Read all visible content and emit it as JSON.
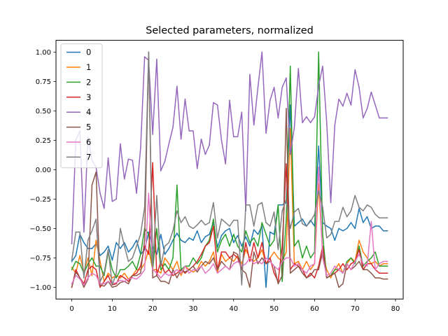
{
  "chart_data": {
    "type": "line",
    "title": "Selected parameters, normalized",
    "xlabel": "",
    "ylabel": "",
    "xlim": [
      -3.9,
      81.9
    ],
    "ylim": [
      -1.1,
      1.1
    ],
    "xticks": [
      0,
      10,
      20,
      30,
      40,
      50,
      60,
      70,
      80
    ],
    "yticks": [
      -1.0,
      -0.75,
      -0.5,
      -0.25,
      0.0,
      0.25,
      0.5,
      0.75,
      1.0
    ],
    "xtick_labels": [
      "0",
      "10",
      "20",
      "30",
      "40",
      "50",
      "60",
      "70",
      "80"
    ],
    "ytick_labels": [
      "−1.00",
      "−0.75",
      "−0.50",
      "−0.25",
      "0.00",
      "0.25",
      "0.50",
      "0.75",
      "1.00"
    ],
    "grid": false,
    "legend_position": "upper-left",
    "series": [
      {
        "name": "0",
        "color": "#1f77b4",
        "values": [
          -0.78,
          -0.73,
          -0.55,
          -0.62,
          -0.67,
          -0.67,
          -0.63,
          -0.73,
          -0.7,
          -0.65,
          -0.77,
          -0.62,
          -0.67,
          -0.62,
          -0.7,
          -0.66,
          -0.6,
          -0.72,
          -0.68,
          -0.53,
          -0.66,
          -0.72,
          -0.55,
          -0.72,
          -0.67,
          -0.6,
          -0.54,
          -0.6,
          -0.62,
          -0.58,
          -0.6,
          -0.52,
          -0.62,
          -0.57,
          -0.55,
          -0.45,
          -0.66,
          -0.56,
          -0.52,
          -0.5,
          -0.62,
          -0.56,
          -0.65,
          -0.57,
          -0.65,
          -0.51,
          -0.55,
          -0.48,
          -1.0,
          -0.53,
          -0.55,
          -0.3,
          -0.3,
          -0.28,
          0.55,
          -0.48,
          -0.45,
          -0.42,
          -0.48,
          -0.43,
          -0.48,
          0.2,
          -0.45,
          -0.48,
          -0.5,
          -0.6,
          -0.5,
          -0.52,
          -0.5,
          -0.45,
          -0.5,
          -0.33,
          -0.45,
          -0.4,
          -0.5,
          -0.48,
          -0.48,
          -0.52,
          -0.52
        ]
      },
      {
        "name": "1",
        "color": "#ff7f0e",
        "values": [
          -0.83,
          -0.88,
          -0.73,
          -0.87,
          -0.75,
          -0.9,
          -0.6,
          -0.78,
          -0.95,
          -0.88,
          -0.92,
          -0.9,
          -0.92,
          -0.88,
          -0.93,
          -0.9,
          -0.85,
          -0.85,
          -0.8,
          -0.68,
          -0.85,
          -0.85,
          -0.88,
          -0.75,
          -0.8,
          -0.85,
          -0.78,
          -0.9,
          -0.82,
          -0.85,
          -0.87,
          -0.85,
          -0.78,
          -0.82,
          -0.78,
          -0.7,
          -0.88,
          -0.72,
          -0.78,
          -0.75,
          -0.78,
          -0.73,
          -0.8,
          -0.68,
          -0.75,
          -0.78,
          -0.75,
          -0.68,
          -0.8,
          -0.75,
          -0.7,
          -0.75,
          -0.78,
          -0.7,
          0.35,
          -0.8,
          -0.78,
          -0.85,
          -0.78,
          -0.85,
          -0.8,
          -0.12,
          -0.72,
          -0.85,
          -0.92,
          -0.85,
          -0.8,
          -0.88,
          -0.8,
          -0.75,
          -0.78,
          -0.6,
          -0.7,
          -0.75,
          -0.8,
          -0.78,
          -0.82,
          -0.8,
          -0.8
        ]
      },
      {
        "name": "2",
        "color": "#2ca02c",
        "values": [
          -0.85,
          -0.78,
          -0.8,
          -0.88,
          -0.8,
          -0.75,
          -0.82,
          -0.82,
          -0.9,
          -0.7,
          -0.85,
          -0.92,
          -0.85,
          -0.85,
          -0.82,
          -0.78,
          -0.85,
          -0.72,
          -0.5,
          -0.55,
          -0.85,
          -0.5,
          -0.85,
          -0.8,
          -0.85,
          -0.75,
          -0.13,
          -0.85,
          -0.82,
          -0.82,
          -0.75,
          -0.8,
          -0.75,
          -0.65,
          -0.6,
          -0.42,
          -0.7,
          -0.6,
          -0.55,
          -0.65,
          -0.55,
          -0.65,
          -0.7,
          -0.52,
          -0.62,
          -0.58,
          -0.65,
          -0.45,
          -0.55,
          -0.65,
          -0.6,
          -0.3,
          -0.95,
          -0.42,
          0.88,
          -0.65,
          -0.6,
          -0.75,
          -0.65,
          -0.75,
          -0.7,
          1.0,
          -0.55,
          -0.92,
          -0.9,
          -0.85,
          -0.85,
          -0.88,
          -0.78,
          -0.75,
          -0.8,
          -0.65,
          -0.82,
          -0.78,
          -0.75,
          -0.7,
          -0.82,
          -0.82,
          -0.82
        ]
      },
      {
        "name": "3",
        "color": "#d62728",
        "values": [
          -1.0,
          -0.85,
          -0.92,
          -0.97,
          -0.85,
          -0.82,
          -0.85,
          -1.0,
          -0.95,
          -0.9,
          -0.98,
          -0.97,
          -0.9,
          -0.92,
          -0.95,
          -0.9,
          -0.88,
          -0.82,
          -0.65,
          -0.72,
          0.06,
          -0.9,
          -0.78,
          -0.88,
          -0.85,
          -0.9,
          -0.88,
          -0.85,
          -0.88,
          -0.85,
          -0.82,
          -0.78,
          -0.72,
          -0.65,
          -0.62,
          -0.48,
          -0.85,
          -0.7,
          -0.7,
          -0.75,
          -0.72,
          -0.75,
          -0.85,
          -0.62,
          -0.78,
          -0.62,
          -0.75,
          -0.62,
          -0.8,
          -0.75,
          -0.88,
          -0.95,
          -0.65,
          0.05,
          -0.85,
          -0.8,
          -0.82,
          -0.85,
          -0.92,
          -0.88,
          -0.92,
          -0.82,
          -0.65,
          -0.92,
          -0.9,
          -0.88,
          -0.85,
          -0.8,
          -0.85,
          -0.8,
          -0.78,
          -0.68,
          -0.85,
          -0.8,
          -0.8,
          -0.85,
          -0.88,
          -0.88,
          -0.88
        ]
      },
      {
        "name": "4",
        "color": "#9467bd",
        "values": [
          -0.63,
          0.25,
          0.33,
          -0.53,
          0.28,
          0.08,
          0.02,
          -0.2,
          -0.33,
          0.1,
          -0.27,
          -0.25,
          0.22,
          -0.08,
          0.09,
          0.08,
          -0.2,
          0.18,
          0.96,
          0.93,
          0.3,
          0.94,
          -0.01,
          0.07,
          0.22,
          0.36,
          0.71,
          0.26,
          0.6,
          0.33,
          0.33,
          0.01,
          0.26,
          0.13,
          0.21,
          0.57,
          0.55,
          0.25,
          0.05,
          0.59,
          0.28,
          0.28,
          0.49,
          -0.35,
          0.81,
          0.38,
          0.7,
          1.0,
          0.31,
          0.59,
          0.7,
          0.44,
          0.7,
          0.78,
          0.13,
          0.36,
          0.86,
          0.4,
          0.45,
          0.4,
          0.45,
          0.71,
          0.88,
          0.4,
          -0.28,
          0.38,
          0.6,
          0.54,
          0.65,
          0.55,
          0.85,
          0.7,
          0.44,
          0.52,
          0.66,
          0.55,
          0.44,
          0.44,
          0.44
        ]
      },
      {
        "name": "5",
        "color": "#8c564b",
        "values": [
          -1.0,
          -0.87,
          -0.92,
          -1.0,
          -0.93,
          -0.13,
          -0.02,
          -0.98,
          -0.99,
          -0.95,
          -1.0,
          -0.99,
          -0.96,
          -0.95,
          -0.97,
          -0.9,
          -0.9,
          -0.88,
          -0.6,
          1.0,
          -0.92,
          -0.9,
          -0.95,
          -0.95,
          -0.97,
          -0.85,
          -0.92,
          -0.85,
          -0.87,
          -0.85,
          -0.82,
          -0.87,
          -0.82,
          -0.78,
          -0.8,
          -0.75,
          -0.85,
          -0.78,
          -0.82,
          -0.85,
          -0.7,
          -0.72,
          -0.85,
          -0.88,
          -1.0,
          -0.7,
          -0.8,
          -0.75,
          -0.8,
          -0.78,
          -0.82,
          -0.97,
          -0.9,
          0.52,
          -0.88,
          -0.85,
          -0.82,
          -0.88,
          -0.92,
          -0.9,
          -0.85,
          -0.85,
          -0.7,
          -0.92,
          -0.9,
          -0.88,
          -1.0,
          -0.97,
          -0.8,
          -0.85,
          -0.82,
          -0.78,
          -0.85,
          -0.85,
          -0.88,
          -0.92,
          -0.92,
          -0.93,
          -0.93
        ]
      },
      {
        "name": "6",
        "color": "#e377c2",
        "values": [
          -0.97,
          -0.9,
          -0.93,
          -0.98,
          -0.92,
          -0.88,
          -0.9,
          -0.97,
          -0.97,
          -0.95,
          -0.97,
          -0.96,
          -0.94,
          -0.95,
          -0.93,
          -0.92,
          -0.93,
          -0.9,
          -0.85,
          -0.2,
          -0.85,
          -0.88,
          -0.92,
          -0.88,
          -0.9,
          -0.88,
          -0.85,
          -0.88,
          -0.82,
          -0.88,
          -0.85,
          -0.85,
          -0.82,
          -0.88,
          -0.85,
          -0.8,
          -0.88,
          -0.85,
          -0.82,
          -0.85,
          -0.8,
          -0.78,
          -0.82,
          -0.8,
          -0.75,
          -0.8,
          -0.78,
          -0.8,
          -0.75,
          -0.78,
          -0.82,
          -0.85,
          -0.78,
          -0.75,
          -0.75,
          -0.82,
          -0.8,
          -0.85,
          -0.88,
          -0.82,
          -0.8,
          0.02,
          -0.75,
          -0.9,
          -0.88,
          -0.82,
          -0.85,
          -0.88,
          -0.8,
          -0.85,
          -0.78,
          -0.72,
          -0.8,
          -0.82,
          -0.44,
          -0.85,
          -0.8,
          -0.78,
          -0.78
        ]
      },
      {
        "name": "7",
        "color": "#7f7f7f",
        "values": [
          -0.77,
          -0.53,
          -0.53,
          -0.92,
          -0.6,
          -0.52,
          -0.42,
          -0.95,
          -0.88,
          -0.68,
          -0.98,
          -0.88,
          -0.5,
          -0.65,
          -0.78,
          -0.75,
          -0.65,
          -0.55,
          -0.32,
          1.0,
          -0.82,
          -0.22,
          -0.82,
          -0.65,
          -0.62,
          -0.52,
          -0.35,
          -0.45,
          -0.4,
          -0.48,
          -0.5,
          -0.47,
          -0.43,
          -0.47,
          -0.45,
          -0.28,
          -0.58,
          -0.42,
          -0.45,
          -0.48,
          -0.43,
          -0.43,
          -0.98,
          -0.3,
          -0.3,
          -0.48,
          -0.3,
          -0.28,
          -0.45,
          -0.48,
          -0.36,
          -0.68,
          -0.35,
          -0.25,
          -0.5,
          -0.36,
          -0.33,
          -0.46,
          -0.48,
          -0.44,
          -0.38,
          -0.18,
          -0.32,
          -0.58,
          -0.55,
          -0.44,
          -0.44,
          -0.32,
          -0.4,
          -0.35,
          -0.22,
          -0.32,
          -0.35,
          -0.3,
          -0.32,
          -0.38,
          -0.41,
          -0.41,
          -0.41
        ]
      }
    ]
  }
}
